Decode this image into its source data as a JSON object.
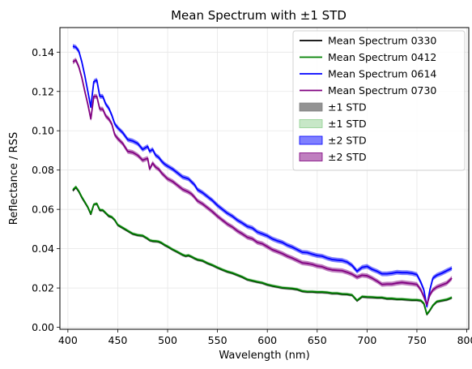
{
  "chart_data": {
    "type": "line",
    "title": "Mean Spectrum with ±1 STD",
    "xlabel": "Wavelength (nm)",
    "ylabel": "Reflectance / RSS",
    "xlim": [
      392,
      802
    ],
    "ylim": [
      -0.001,
      0.1525
    ],
    "xticks": [
      400,
      450,
      500,
      550,
      600,
      650,
      700,
      750,
      800
    ],
    "yticks": [
      0.0,
      0.02,
      0.04,
      0.06,
      0.08,
      0.1,
      0.12,
      0.14
    ],
    "grid": true,
    "legend_position": "top-right",
    "x": [
      405,
      408,
      411,
      414,
      417,
      420,
      423,
      426,
      429,
      432,
      435,
      438,
      441,
      444,
      447,
      450,
      455,
      460,
      465,
      470,
      475,
      480,
      482,
      485,
      488,
      491,
      494,
      497,
      500,
      505,
      510,
      515,
      518,
      521,
      524,
      527,
      530,
      535,
      540,
      545,
      550,
      555,
      560,
      565,
      570,
      575,
      580,
      585,
      590,
      595,
      600,
      605,
      610,
      615,
      620,
      625,
      630,
      635,
      640,
      645,
      650,
      655,
      660,
      665,
      670,
      675,
      680,
      685,
      690,
      695,
      700,
      705,
      710,
      715,
      720,
      725,
      730,
      735,
      740,
      745,
      750,
      754,
      757,
      760,
      763,
      766,
      770,
      775,
      780,
      785
    ],
    "series": [
      {
        "name": "Mean Spectrum 0330",
        "color": "#000000",
        "values": [
          0.0695,
          0.0712,
          0.069,
          0.066,
          0.0635,
          0.061,
          0.0575,
          0.0625,
          0.0628,
          0.0595,
          0.0595,
          0.058,
          0.0565,
          0.056,
          0.0545,
          0.052,
          0.0505,
          0.049,
          0.0475,
          0.0468,
          0.0465,
          0.045,
          0.0442,
          0.0438,
          0.0437,
          0.0435,
          0.0428,
          0.0418,
          0.041,
          0.0395,
          0.0382,
          0.0368,
          0.0362,
          0.0365,
          0.0358,
          0.035,
          0.0343,
          0.0338,
          0.0325,
          0.0315,
          0.0303,
          0.0292,
          0.0282,
          0.0275,
          0.0265,
          0.0255,
          0.0242,
          0.0236,
          0.023,
          0.0225,
          0.0216,
          0.021,
          0.0205,
          0.02,
          0.0198,
          0.0196,
          0.0192,
          0.0183,
          0.018,
          0.018,
          0.0178,
          0.0178,
          0.0176,
          0.0172,
          0.0172,
          0.0168,
          0.0167,
          0.0163,
          0.0135,
          0.0155,
          0.0153,
          0.0152,
          0.015,
          0.015,
          0.0145,
          0.0145,
          0.0142,
          0.0142,
          0.014,
          0.0138,
          0.0138,
          0.0135,
          0.012,
          0.0065,
          0.0085,
          0.011,
          0.013,
          0.0135,
          0.014,
          0.015
        ]
      },
      {
        "name": "Mean Spectrum 0412",
        "color": "#008000",
        "values": [
          0.07,
          0.0715,
          0.0693,
          0.0663,
          0.0638,
          0.0612,
          0.0578,
          0.0625,
          0.063,
          0.0598,
          0.0597,
          0.0582,
          0.0568,
          0.0562,
          0.0547,
          0.0522,
          0.0507,
          0.0492,
          0.0477,
          0.047,
          0.0467,
          0.0452,
          0.0444,
          0.044,
          0.0439,
          0.0437,
          0.043,
          0.042,
          0.0412,
          0.0397,
          0.0384,
          0.037,
          0.0364,
          0.0367,
          0.036,
          0.0352,
          0.0345,
          0.034,
          0.0327,
          0.0317,
          0.0305,
          0.0294,
          0.0284,
          0.0277,
          0.0267,
          0.0257,
          0.0244,
          0.0238,
          0.0232,
          0.0227,
          0.0218,
          0.0212,
          0.0207,
          0.0202,
          0.02,
          0.0198,
          0.0194,
          0.0185,
          0.0182,
          0.0182,
          0.018,
          0.018,
          0.0178,
          0.0174,
          0.0174,
          0.017,
          0.0169,
          0.0165,
          0.0137,
          0.0157,
          0.0155,
          0.0154,
          0.0152,
          0.0152,
          0.0147,
          0.0147,
          0.0144,
          0.0144,
          0.0142,
          0.014,
          0.014,
          0.0137,
          0.0122,
          0.0067,
          0.0087,
          0.0112,
          0.0132,
          0.0137,
          0.0142,
          0.0152
        ]
      },
      {
        "name": "Mean Spectrum 0614",
        "color": "#0000ff",
        "values": [
          0.143,
          0.1425,
          0.1405,
          0.135,
          0.128,
          0.12,
          0.112,
          0.125,
          0.1258,
          0.1175,
          0.1175,
          0.1135,
          0.1115,
          0.108,
          0.1035,
          0.1015,
          0.099,
          0.0955,
          0.0948,
          0.0935,
          0.0905,
          0.092,
          0.0895,
          0.0905,
          0.0875,
          0.0865,
          0.0845,
          0.083,
          0.082,
          0.0805,
          0.0785,
          0.0765,
          0.076,
          0.0755,
          0.074,
          0.0725,
          0.07,
          0.0685,
          0.0665,
          0.0645,
          0.062,
          0.06,
          0.058,
          0.0565,
          0.0545,
          0.053,
          0.0513,
          0.0505,
          0.0485,
          0.0475,
          0.0465,
          0.045,
          0.044,
          0.0432,
          0.0418,
          0.0408,
          0.0395,
          0.0382,
          0.038,
          0.0372,
          0.0365,
          0.0362,
          0.0352,
          0.0345,
          0.0342,
          0.034,
          0.0332,
          0.0315,
          0.0285,
          0.0305,
          0.031,
          0.0295,
          0.0285,
          0.0272,
          0.0272,
          0.0275,
          0.028,
          0.0278,
          0.0278,
          0.0275,
          0.0268,
          0.0228,
          0.019,
          0.0105,
          0.019,
          0.025,
          0.0265,
          0.0275,
          0.0288,
          0.03
        ]
      },
      {
        "name": "Mean Spectrum 0730",
        "color": "#800080",
        "values": [
          0.135,
          0.136,
          0.1325,
          0.127,
          0.12,
          0.1135,
          0.106,
          0.1175,
          0.1175,
          0.111,
          0.111,
          0.1075,
          0.106,
          0.1035,
          0.098,
          0.096,
          0.0935,
          0.0895,
          0.089,
          0.0875,
          0.085,
          0.086,
          0.0805,
          0.0835,
          0.0815,
          0.0805,
          0.0785,
          0.077,
          0.0755,
          0.0742,
          0.0722,
          0.0702,
          0.0695,
          0.0688,
          0.0678,
          0.0662,
          0.0643,
          0.0628,
          0.0608,
          0.0588,
          0.0565,
          0.0545,
          0.0525,
          0.051,
          0.049,
          0.0475,
          0.0458,
          0.045,
          0.0432,
          0.0425,
          0.041,
          0.0395,
          0.0385,
          0.0375,
          0.0362,
          0.0352,
          0.034,
          0.0328,
          0.0325,
          0.032,
          0.0312,
          0.0308,
          0.0298,
          0.0292,
          0.029,
          0.0288,
          0.028,
          0.027,
          0.0255,
          0.0265,
          0.0262,
          0.025,
          0.0235,
          0.0218,
          0.022,
          0.022,
          0.0225,
          0.0228,
          0.0225,
          0.0222,
          0.0218,
          0.019,
          0.0155,
          0.0115,
          0.0165,
          0.019,
          0.0205,
          0.0215,
          0.0225,
          0.025
        ]
      }
    ],
    "bands": [
      {
        "name": "±1 STD",
        "series_index": 0,
        "color": "#808080",
        "opacity": 0.85,
        "std": 0.0007
      },
      {
        "name": "±1 STD",
        "series_index": 1,
        "color": "#90d090",
        "opacity": 0.5,
        "std": 0.0008
      },
      {
        "name": "±2 STD",
        "series_index": 2,
        "color": "#0000ff",
        "opacity": 0.5,
        "std": 0.0012
      },
      {
        "name": "±2 STD",
        "series_index": 3,
        "color": "#800080",
        "opacity": 0.5,
        "std": 0.0012
      }
    ]
  }
}
